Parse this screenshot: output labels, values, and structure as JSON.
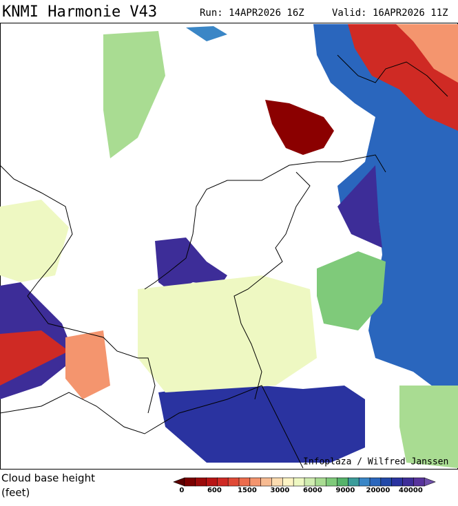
{
  "header": {
    "title": "KNMI Harmonie V43",
    "run": "Run: 14APR2026 16Z",
    "valid": "Valid: 16APR2026 11Z"
  },
  "map": {
    "credit": "Infoplaza / Wilfred Janssen"
  },
  "legend": {
    "title": "Cloud base height",
    "unit": "(feet)",
    "labels": [
      0,
      600,
      1500,
      3000,
      6000,
      9000,
      20000,
      40000
    ],
    "colors": [
      "#5c0000",
      "#7a0000",
      "#9b0a0a",
      "#b81414",
      "#cf2a24",
      "#e04a36",
      "#ec6c4c",
      "#f4956e",
      "#f7bb92",
      "#fbdcb0",
      "#fdf4c4",
      "#eef8c2",
      "#d0ecb0",
      "#a9dc92",
      "#7fca7a",
      "#55b36a",
      "#3b9c9a",
      "#3a86c6",
      "#2a66bd",
      "#2148a8",
      "#2a33a0",
      "#3d2d98",
      "#58339c",
      "#7050aa"
    ]
  }
}
